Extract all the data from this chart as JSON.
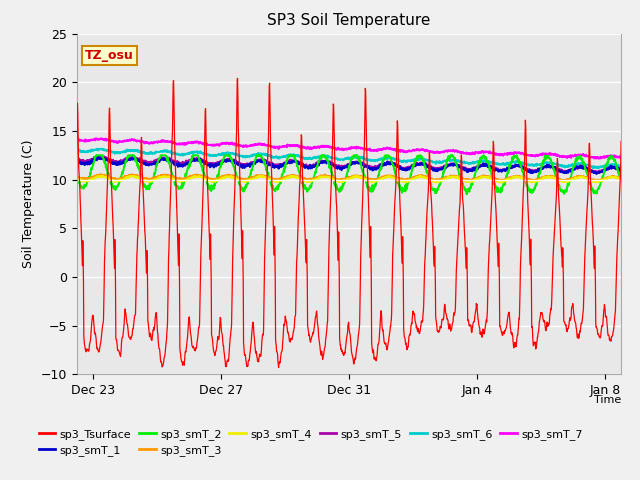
{
  "title": "SP3 Soil Temperature",
  "ylabel": "Soil Temperature (C)",
  "xlabel": "Time",
  "ylim": [
    -10,
    25
  ],
  "yticks": [
    -10,
    -5,
    0,
    5,
    10,
    15,
    20,
    25
  ],
  "x_tick_labels": [
    "Dec 23",
    "Dec 27",
    "Dec 31",
    "Jan 4",
    "Jan 8"
  ],
  "fig_bg": "#f0f0f0",
  "plot_bg": "#e8e8e8",
  "colors": {
    "sp3_Tsurface": "#ff0000",
    "sp3_smT_1": "#0000cc",
    "sp3_smT_2": "#00ee00",
    "sp3_smT_3": "#ff9900",
    "sp3_smT_4": "#eeee00",
    "sp3_smT_5": "#aa00aa",
    "sp3_smT_6": "#00cccc",
    "sp3_smT_7": "#ff00ff"
  },
  "tz_label": "TZ_osu",
  "tz_bg": "#ffffcc",
  "tz_border": "#cc8800",
  "tz_color": "#cc0000"
}
